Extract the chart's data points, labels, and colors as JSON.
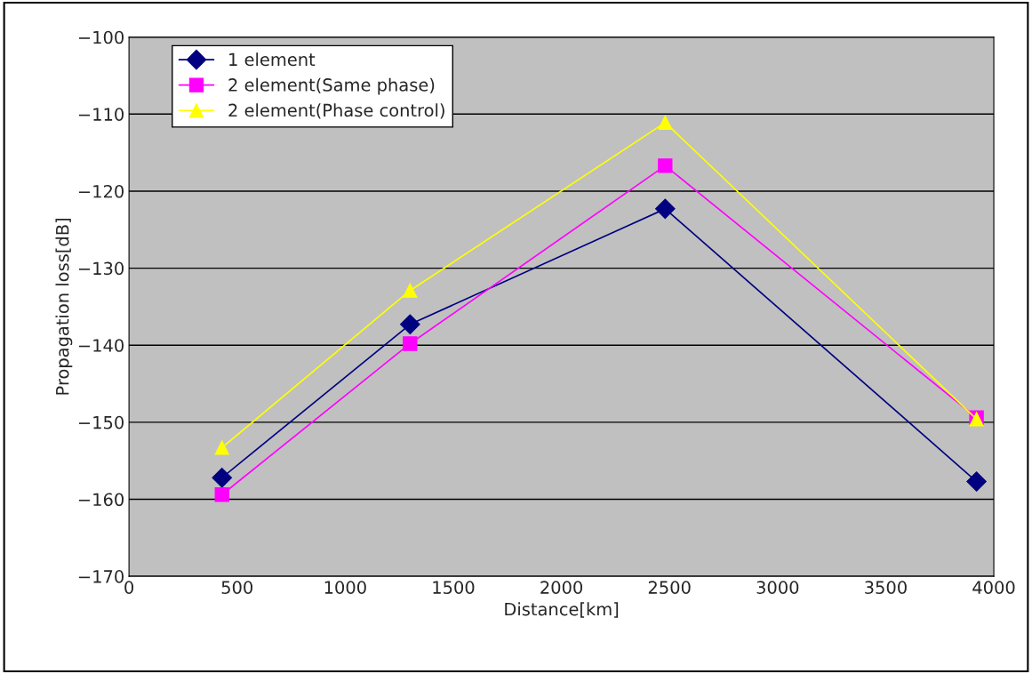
{
  "chart_data": {
    "type": "line",
    "xlabel": "Distance[km]",
    "ylabel": "Propagation loss[dB]",
    "x": [
      430,
      1300,
      2480,
      3920
    ],
    "series": [
      {
        "name": "1 element",
        "color": "#000080",
        "marker": "diamond",
        "values": [
          -157.2,
          -137.3,
          -122.3,
          -157.7
        ]
      },
      {
        "name": "2 element(Same phase)",
        "color": "#ff00ff",
        "marker": "square",
        "values": [
          -159.4,
          -139.8,
          -116.7,
          -149.4
        ]
      },
      {
        "name": "2 element(Phase control)",
        "color": "#ffff00",
        "marker": "triangle",
        "values": [
          -153.3,
          -132.9,
          -111.1,
          -149.6
        ]
      }
    ],
    "xlim": [
      0,
      4000
    ],
    "xticks": [
      0,
      500,
      1000,
      1500,
      2000,
      2500,
      3000,
      3500,
      4000
    ],
    "ylim": [
      -170,
      -100
    ],
    "yticks": [
      {
        "value": -170,
        "label": "−170"
      },
      {
        "value": -160,
        "label": "−160"
      },
      {
        "value": -150,
        "label": "−150"
      },
      {
        "value": -140,
        "label": "−140"
      },
      {
        "value": -130,
        "label": "−130"
      },
      {
        "value": -120,
        "label": "−120"
      },
      {
        "value": -110,
        "label": "−110"
      },
      {
        "value": -100,
        "label": "−100"
      }
    ],
    "grid": "y",
    "legend": "top left"
  }
}
